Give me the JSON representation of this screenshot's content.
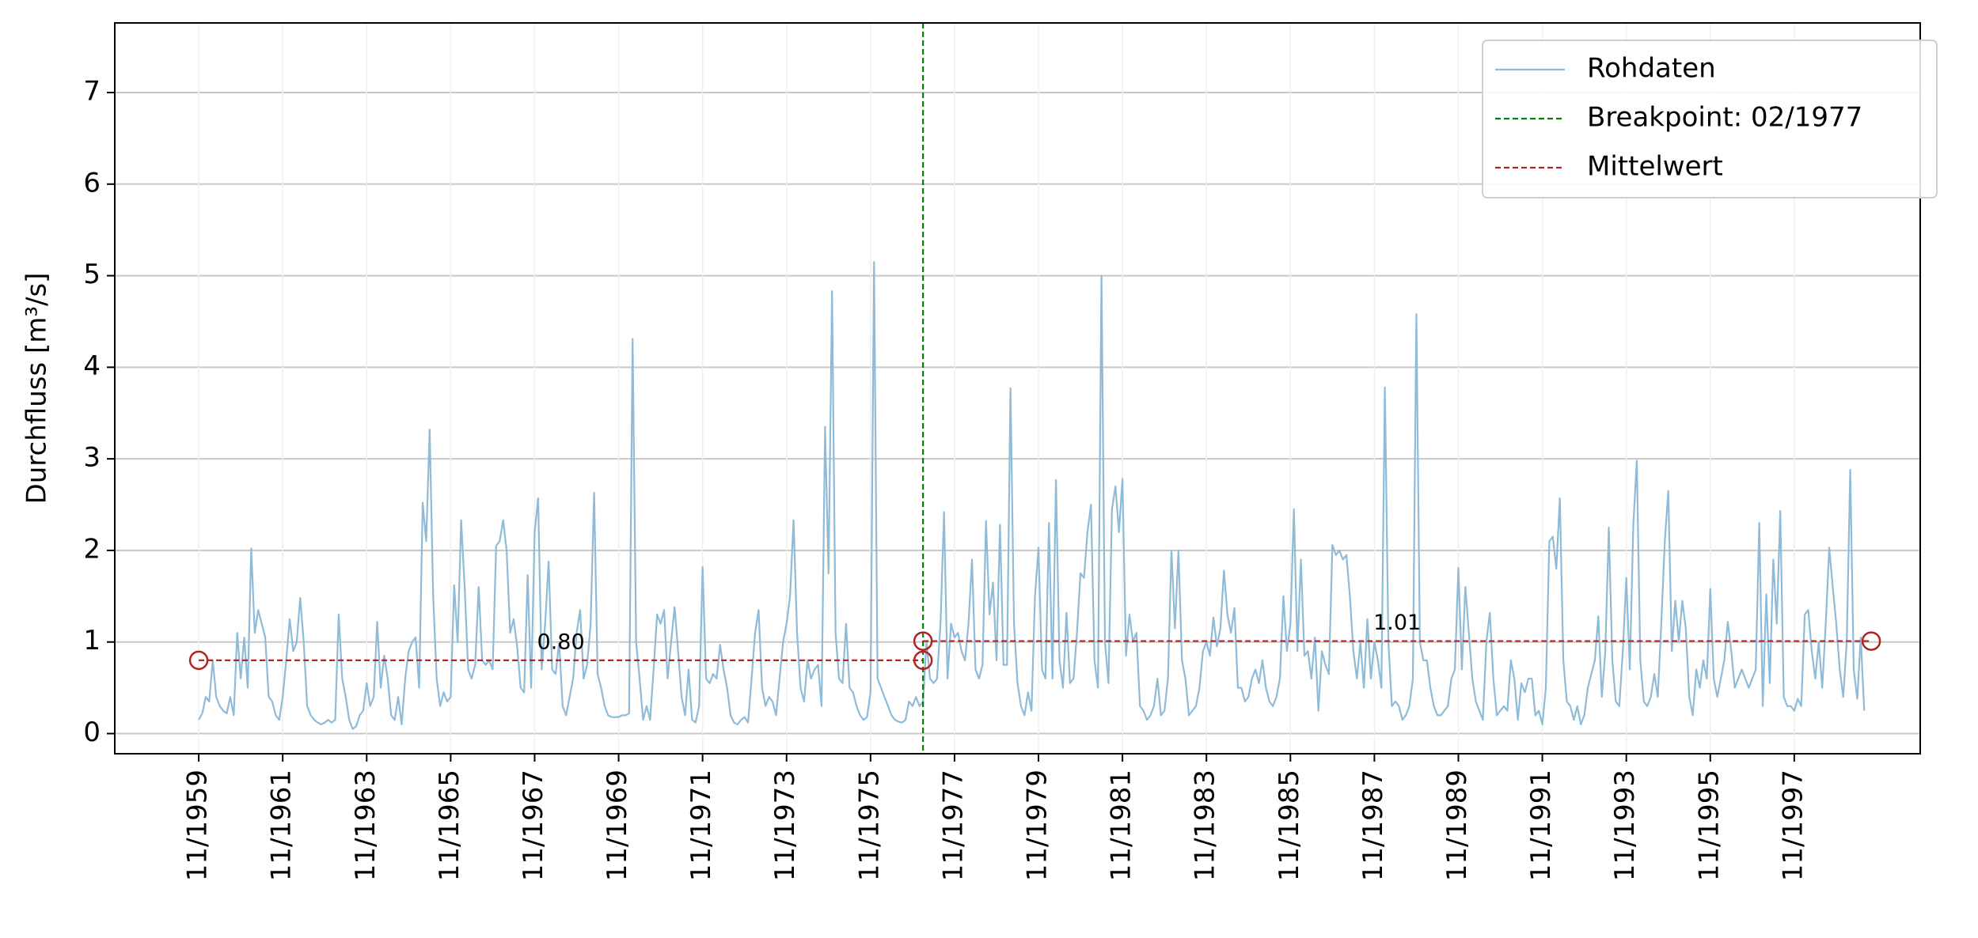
{
  "chart_data": {
    "type": "line",
    "y_label": "Durchfluss [m³/s]",
    "x": [
      "11/1959",
      "12/1959",
      "01/1960",
      "02/1960",
      "03/1960",
      "04/1960",
      "05/1960",
      "06/1960",
      "07/1960",
      "08/1960",
      "09/1960",
      "10/1960",
      "11/1960",
      "12/1960",
      "01/1961",
      "02/1961",
      "03/1961",
      "04/1961",
      "05/1961",
      "06/1961",
      "07/1961",
      "08/1961",
      "09/1961",
      "10/1961",
      "11/1961",
      "12/1961",
      "01/1962",
      "02/1962",
      "03/1962",
      "04/1962",
      "05/1962",
      "06/1962",
      "07/1962",
      "08/1962",
      "09/1962",
      "10/1962",
      "11/1962",
      "12/1962",
      "01/1963",
      "02/1963",
      "03/1963",
      "04/1963",
      "05/1963",
      "06/1963",
      "07/1963",
      "08/1963",
      "09/1963",
      "10/1963",
      "11/1963",
      "12/1963",
      "01/1964",
      "02/1964",
      "03/1964",
      "04/1964",
      "05/1964",
      "06/1964",
      "07/1964",
      "08/1964",
      "09/1964",
      "10/1964",
      "11/1964",
      "12/1964",
      "01/1965",
      "02/1965",
      "03/1965",
      "04/1965",
      "05/1965",
      "06/1965",
      "07/1965",
      "08/1965",
      "09/1965",
      "10/1965",
      "11/1965",
      "12/1965",
      "01/1966",
      "02/1966",
      "03/1966",
      "04/1966",
      "05/1966",
      "06/1966",
      "07/1966",
      "08/1966",
      "09/1966",
      "10/1966",
      "11/1966",
      "12/1966",
      "01/1967",
      "02/1967",
      "03/1967",
      "04/1967",
      "05/1967",
      "06/1967",
      "07/1967",
      "08/1967",
      "09/1967",
      "10/1967",
      "11/1967",
      "12/1967",
      "01/1968",
      "02/1968",
      "03/1968",
      "04/1968",
      "05/1968",
      "06/1968",
      "07/1968",
      "08/1968",
      "09/1968",
      "10/1968",
      "11/1968",
      "12/1968",
      "01/1969",
      "02/1969",
      "03/1969",
      "04/1969",
      "05/1969",
      "06/1969",
      "07/1969",
      "08/1969",
      "09/1969",
      "10/1969",
      "11/1969",
      "12/1969",
      "01/1970",
      "02/1970",
      "03/1970",
      "04/1970",
      "05/1970",
      "06/1970",
      "07/1970",
      "08/1970",
      "09/1970",
      "10/1970",
      "11/1970",
      "12/1970",
      "01/1971",
      "02/1971",
      "03/1971",
      "04/1971",
      "05/1971",
      "06/1971",
      "07/1971",
      "08/1971",
      "09/1971",
      "10/1971",
      "11/1971",
      "12/1971",
      "01/1972",
      "02/1972",
      "03/1972",
      "04/1972",
      "05/1972",
      "06/1972",
      "07/1972",
      "08/1972",
      "09/1972",
      "10/1972",
      "11/1972",
      "12/1972",
      "01/1973",
      "02/1973",
      "03/1973",
      "04/1973",
      "05/1973",
      "06/1973",
      "07/1973",
      "08/1973",
      "09/1973",
      "10/1973",
      "11/1973",
      "12/1973",
      "01/1974",
      "02/1974",
      "03/1974",
      "04/1974",
      "05/1974",
      "06/1974",
      "07/1974",
      "08/1974",
      "09/1974",
      "10/1974",
      "11/1974",
      "12/1974",
      "01/1975",
      "02/1975",
      "03/1975",
      "04/1975",
      "05/1975",
      "06/1975",
      "07/1975",
      "08/1975",
      "09/1975",
      "10/1975",
      "11/1975",
      "12/1975",
      "01/1976",
      "02/1976",
      "03/1976",
      "04/1976",
      "05/1976",
      "06/1976",
      "07/1976",
      "08/1976",
      "09/1976",
      "10/1976",
      "11/1976",
      "12/1976",
      "01/1977",
      "02/1977",
      "03/1977",
      "04/1977",
      "05/1977",
      "06/1977",
      "07/1977",
      "08/1977",
      "09/1977",
      "10/1977",
      "11/1977",
      "12/1977",
      "01/1978",
      "02/1978",
      "03/1978",
      "04/1978",
      "05/1978",
      "06/1978",
      "07/1978",
      "08/1978",
      "09/1978",
      "10/1978",
      "11/1978",
      "12/1978",
      "01/1979",
      "02/1979",
      "03/1979",
      "04/1979",
      "05/1979",
      "06/1979",
      "07/1979",
      "08/1979",
      "09/1979",
      "10/1979",
      "11/1979",
      "12/1979",
      "01/1980",
      "02/1980",
      "03/1980",
      "04/1980",
      "05/1980",
      "06/1980",
      "07/1980",
      "08/1980",
      "09/1980",
      "10/1980",
      "11/1980",
      "12/1980",
      "01/1981",
      "02/1981",
      "03/1981",
      "04/1981",
      "05/1981",
      "06/1981",
      "07/1981",
      "08/1981",
      "09/1981",
      "10/1981",
      "11/1981",
      "12/1981",
      "01/1982",
      "02/1982",
      "03/1982",
      "04/1982",
      "05/1982",
      "06/1982",
      "07/1982",
      "08/1982",
      "09/1982",
      "10/1982",
      "11/1982",
      "12/1982",
      "01/1983",
      "02/1983",
      "03/1983",
      "04/1983",
      "05/1983",
      "06/1983",
      "07/1983",
      "08/1983",
      "09/1983",
      "10/1983",
      "11/1983",
      "12/1983",
      "01/1984",
      "02/1984",
      "03/1984",
      "04/1984",
      "05/1984",
      "06/1984",
      "07/1984",
      "08/1984",
      "09/1984",
      "10/1984",
      "11/1984",
      "12/1984",
      "01/1985",
      "02/1985",
      "03/1985",
      "04/1985",
      "05/1985",
      "06/1985",
      "07/1985",
      "08/1985",
      "09/1985",
      "10/1985",
      "11/1985",
      "12/1985",
      "01/1986",
      "02/1986",
      "03/1986",
      "04/1986",
      "05/1986",
      "06/1986",
      "07/1986",
      "08/1986",
      "09/1986",
      "10/1986",
      "11/1986",
      "12/1986",
      "01/1987",
      "02/1987",
      "03/1987",
      "04/1987",
      "05/1987",
      "06/1987",
      "07/1987",
      "08/1987",
      "09/1987",
      "10/1987",
      "11/1987",
      "12/1987",
      "01/1988",
      "02/1988",
      "03/1988",
      "04/1988",
      "05/1988",
      "06/1988",
      "07/1988",
      "08/1988",
      "09/1988",
      "10/1988",
      "11/1988",
      "12/1988",
      "01/1989",
      "02/1989",
      "03/1989",
      "04/1989",
      "05/1989",
      "06/1989",
      "07/1989",
      "08/1989",
      "09/1989",
      "10/1989",
      "11/1989",
      "12/1989",
      "01/1990",
      "02/1990",
      "03/1990",
      "04/1990",
      "05/1990",
      "06/1990",
      "07/1990",
      "08/1990",
      "09/1990",
      "10/1990",
      "11/1990",
      "12/1990",
      "01/1991",
      "02/1991",
      "03/1991",
      "04/1991",
      "05/1991",
      "06/1991",
      "07/1991",
      "08/1991",
      "09/1991",
      "10/1991",
      "11/1991",
      "12/1991",
      "01/1992",
      "02/1992",
      "03/1992",
      "04/1992",
      "05/1992",
      "06/1992",
      "07/1992",
      "08/1992",
      "09/1992",
      "10/1992",
      "11/1992",
      "12/1992",
      "01/1993",
      "02/1993",
      "03/1993",
      "04/1993",
      "05/1993",
      "06/1993",
      "07/1993",
      "08/1993",
      "09/1993",
      "10/1993",
      "11/1993",
      "12/1993",
      "01/1994",
      "02/1994",
      "03/1994",
      "04/1994",
      "05/1994",
      "06/1994",
      "07/1994",
      "08/1994",
      "09/1994",
      "10/1994",
      "11/1994",
      "12/1994",
      "01/1995",
      "02/1995",
      "03/1995",
      "04/1995",
      "05/1995",
      "06/1995",
      "07/1995",
      "08/1995",
      "09/1995",
      "10/1995",
      "11/1995",
      "12/1995",
      "01/1996",
      "02/1996",
      "03/1996",
      "04/1996",
      "05/1996",
      "06/1996",
      "07/1996",
      "08/1996",
      "09/1996",
      "10/1996",
      "11/1996",
      "12/1996",
      "01/1997",
      "02/1997",
      "03/1997",
      "04/1997",
      "05/1997",
      "06/1997",
      "07/1997",
      "08/1997",
      "09/1997",
      "10/1997",
      "11/1997",
      "12/1997",
      "01/1998",
      "02/1998",
      "03/1998",
      "04/1998",
      "05/1998",
      "06/1998",
      "07/1998",
      "08/1998",
      "09/1998",
      "10/1998",
      "11/1998",
      "12/1998",
      "01/1999",
      "02/1999",
      "03/1999",
      "04/1999",
      "05/1999",
      "06/1999",
      "07/1999"
    ],
    "series": [
      {
        "name": "Rohdaten",
        "color": "#8fbbd9",
        "values": [
          0.15,
          0.22,
          0.4,
          0.35,
          0.8,
          0.4,
          0.3,
          0.25,
          0.22,
          0.4,
          0.2,
          1.1,
          0.6,
          1.05,
          0.5,
          2.02,
          1.1,
          1.35,
          1.2,
          1.05,
          0.4,
          0.35,
          0.2,
          0.15,
          0.4,
          0.8,
          1.25,
          0.9,
          1.0,
          1.48,
          1.0,
          0.3,
          0.2,
          0.15,
          0.12,
          0.1,
          0.12,
          0.15,
          0.12,
          0.15,
          1.3,
          0.6,
          0.4,
          0.15,
          0.05,
          0.08,
          0.2,
          0.25,
          0.55,
          0.3,
          0.4,
          1.22,
          0.5,
          0.85,
          0.6,
          0.2,
          0.15,
          0.4,
          0.1,
          0.6,
          0.9,
          1.0,
          1.05,
          0.5,
          2.52,
          2.1,
          3.32,
          1.5,
          0.6,
          0.3,
          0.45,
          0.35,
          0.4,
          1.62,
          1.0,
          2.33,
          1.6,
          0.7,
          0.6,
          0.75,
          1.6,
          0.8,
          0.75,
          0.8,
          0.7,
          2.05,
          2.1,
          2.33,
          2.0,
          1.1,
          1.25,
          0.95,
          0.5,
          0.45,
          1.73,
          0.5,
          2.2,
          2.57,
          0.7,
          1.2,
          1.88,
          0.7,
          0.65,
          1.0,
          0.3,
          0.2,
          0.4,
          0.6,
          1.1,
          1.35,
          0.6,
          0.75,
          1.2,
          2.63,
          0.65,
          0.5,
          0.3,
          0.2,
          0.18,
          0.18,
          0.18,
          0.2,
          0.2,
          0.22,
          4.31,
          1.0,
          0.6,
          0.15,
          0.3,
          0.15,
          0.7,
          1.3,
          1.2,
          1.35,
          0.6,
          1.0,
          1.38,
          0.9,
          0.4,
          0.2,
          0.7,
          0.15,
          0.12,
          0.3,
          1.82,
          0.6,
          0.55,
          0.65,
          0.6,
          0.97,
          0.7,
          0.5,
          0.2,
          0.12,
          0.1,
          0.15,
          0.18,
          0.12,
          0.6,
          1.1,
          1.35,
          0.5,
          0.3,
          0.4,
          0.35,
          0.2,
          0.6,
          1.0,
          1.2,
          1.5,
          2.33,
          1.1,
          0.5,
          0.35,
          0.8,
          0.6,
          0.7,
          0.75,
          0.3,
          3.35,
          1.75,
          4.83,
          1.1,
          0.6,
          0.55,
          1.2,
          0.5,
          0.45,
          0.3,
          0.2,
          0.15,
          0.18,
          0.45,
          5.15,
          0.6,
          0.5,
          0.4,
          0.3,
          0.2,
          0.15,
          0.13,
          0.12,
          0.15,
          0.35,
          0.3,
          0.4,
          0.3,
          0.35,
          1.0,
          0.6,
          0.55,
          0.6,
          1.2,
          2.42,
          0.6,
          1.2,
          1.05,
          1.1,
          0.9,
          0.8,
          1.2,
          1.9,
          0.7,
          0.6,
          0.75,
          2.32,
          1.3,
          1.65,
          0.8,
          2.28,
          0.75,
          0.75,
          3.77,
          1.2,
          0.55,
          0.3,
          0.2,
          0.45,
          0.25,
          1.5,
          2.03,
          0.7,
          0.6,
          2.3,
          0.6,
          2.77,
          0.8,
          0.5,
          1.32,
          0.55,
          0.6,
          1.1,
          1.75,
          1.7,
          2.2,
          2.5,
          0.8,
          0.5,
          5.0,
          1.0,
          0.55,
          2.45,
          2.7,
          2.2,
          2.78,
          0.85,
          1.3,
          1.0,
          1.1,
          0.3,
          0.25,
          0.15,
          0.2,
          0.3,
          0.6,
          0.2,
          0.25,
          0.6,
          2.0,
          1.15,
          2.0,
          0.8,
          0.6,
          0.2,
          0.25,
          0.3,
          0.5,
          0.9,
          1.0,
          0.85,
          1.27,
          0.95,
          1.15,
          1.78,
          1.3,
          1.1,
          1.37,
          0.5,
          0.5,
          0.35,
          0.4,
          0.6,
          0.7,
          0.55,
          0.8,
          0.5,
          0.35,
          0.3,
          0.4,
          0.6,
          1.5,
          0.9,
          1.2,
          2.45,
          0.9,
          1.9,
          0.85,
          0.9,
          0.6,
          1.05,
          0.25,
          0.9,
          0.75,
          0.65,
          2.06,
          1.95,
          2.0,
          1.9,
          1.95,
          1.5,
          0.9,
          0.6,
          1.0,
          0.5,
          1.25,
          0.6,
          1.0,
          0.8,
          0.5,
          3.78,
          1.0,
          0.3,
          0.35,
          0.3,
          0.15,
          0.2,
          0.3,
          0.6,
          4.58,
          1.0,
          0.8,
          0.8,
          0.5,
          0.3,
          0.2,
          0.2,
          0.25,
          0.3,
          0.6,
          0.7,
          1.81,
          0.7,
          1.6,
          1.1,
          0.6,
          0.35,
          0.25,
          0.15,
          1.0,
          1.32,
          0.6,
          0.2,
          0.25,
          0.3,
          0.25,
          0.8,
          0.6,
          0.15,
          0.55,
          0.45,
          0.6,
          0.6,
          0.2,
          0.25,
          0.1,
          0.5,
          2.1,
          2.15,
          1.8,
          2.57,
          0.8,
          0.35,
          0.3,
          0.15,
          0.3,
          0.1,
          0.2,
          0.5,
          0.65,
          0.8,
          1.28,
          0.4,
          0.9,
          2.25,
          0.8,
          0.35,
          0.3,
          0.9,
          1.7,
          0.7,
          2.28,
          2.98,
          0.8,
          0.35,
          0.3,
          0.4,
          0.65,
          0.4,
          1.2,
          2.1,
          2.65,
          0.9,
          1.45,
          1.0,
          1.45,
          1.15,
          0.4,
          0.2,
          0.7,
          0.5,
          0.8,
          0.6,
          1.58,
          0.6,
          0.4,
          0.6,
          0.8,
          1.22,
          0.9,
          0.5,
          0.6,
          0.7,
          0.6,
          0.5,
          0.6,
          0.7,
          2.3,
          0.3,
          1.52,
          0.55,
          1.9,
          1.2,
          2.43,
          0.4,
          0.3,
          0.3,
          0.25,
          0.38,
          0.3,
          1.3,
          1.35,
          0.9,
          0.6,
          1.0,
          0.5,
          1.2,
          2.03,
          1.6,
          1.2,
          0.7,
          0.4,
          1.0,
          2.88,
          0.7,
          0.38,
          1.05,
          0.25
        ]
      }
    ],
    "breakpoint": {
      "name": "Breakpoint: 02/1977",
      "color": "#008000",
      "x": "02/1977"
    },
    "mean": {
      "name": "Mittelwert",
      "color": "#b22222",
      "starts": [
        "11/1959",
        "02/1977"
      ],
      "ends": [
        "02/1977",
        "09/1999"
      ],
      "values": [
        0.8,
        1.01
      ],
      "value_labels": [
        "0.80",
        "1.01"
      ]
    },
    "xlim": [
      "11/1957",
      "11/2000"
    ],
    "xticks": [
      "11/1959",
      "11/1961",
      "11/1963",
      "11/1965",
      "11/1967",
      "11/1969",
      "11/1971",
      "11/1973",
      "11/1975",
      "11/1977",
      "11/1979",
      "11/1981",
      "11/1983",
      "11/1985",
      "11/1987",
      "11/1989",
      "11/1991",
      "11/1993",
      "11/1995",
      "11/1997"
    ],
    "ylim": [
      -0.22,
      7.76
    ],
    "yticks": [
      0,
      1,
      2,
      3,
      4,
      5,
      6,
      7
    ],
    "grid": true,
    "legend": "upper right"
  }
}
